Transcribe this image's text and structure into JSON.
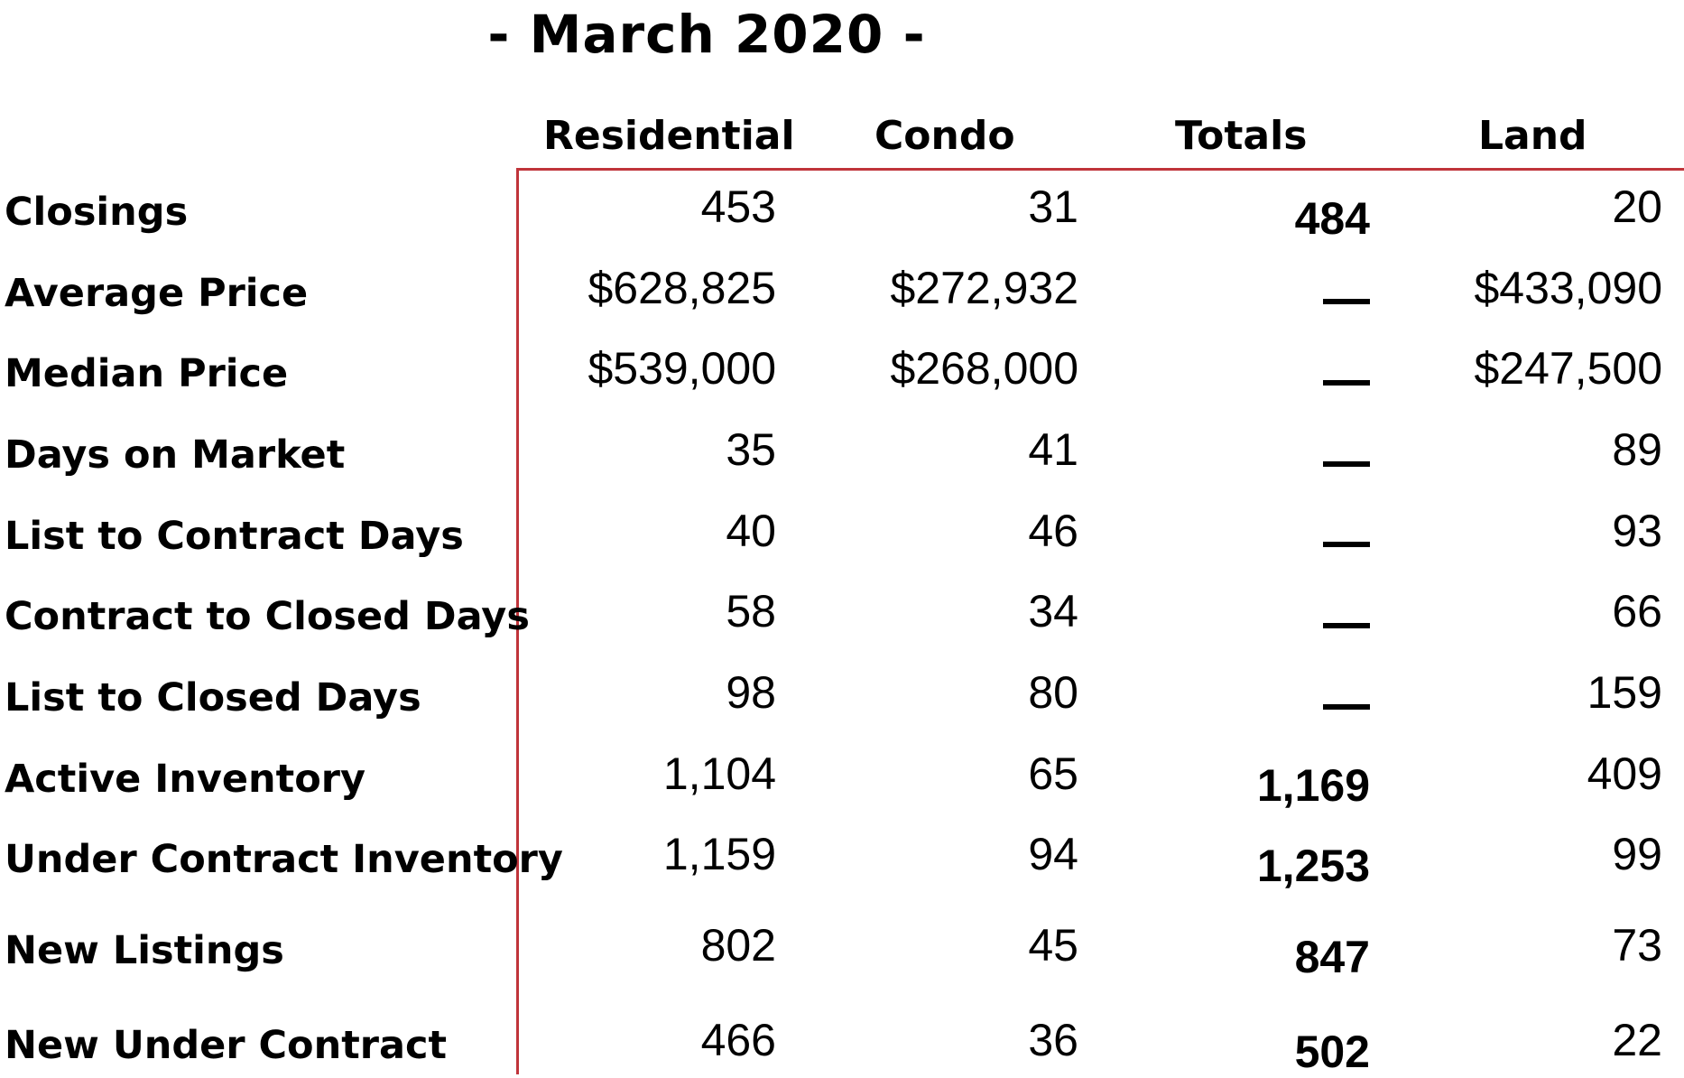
{
  "title": "- March 2020 -",
  "columns": [
    "Residential",
    "Condo",
    "Totals",
    "Land"
  ],
  "rows": [
    {
      "label": "Closings",
      "residential": "453",
      "condo": "31",
      "totals": "484",
      "land": "20"
    },
    {
      "label": "Average Price",
      "residential": "$628,825",
      "condo": "$272,932",
      "totals": "—",
      "land": "$433,090"
    },
    {
      "label": "Median Price",
      "residential": "$539,000",
      "condo": "$268,000",
      "totals": "—",
      "land": "$247,500"
    },
    {
      "label": "Days on Market",
      "residential": "35",
      "condo": "41",
      "totals": "—",
      "land": "89"
    },
    {
      "label": "List to Contract Days",
      "residential": "40",
      "condo": "46",
      "totals": "—",
      "land": "93"
    },
    {
      "label": "Contract to Closed Days",
      "residential": "58",
      "condo": "34",
      "totals": "—",
      "land": "66"
    },
    {
      "label": "List to Closed Days",
      "residential": "98",
      "condo": "80",
      "totals": "—",
      "land": "159"
    },
    {
      "label": "Active Inventory",
      "residential": "1,104",
      "condo": "65",
      "totals": "1,169",
      "land": "409"
    },
    {
      "label": "Under Contract Inventory",
      "residential": "1,159",
      "condo": "94",
      "totals": "1,253",
      "land": "99"
    },
    {
      "label": "New Listings",
      "residential": "802",
      "condo": "45",
      "totals": "847",
      "land": "73"
    },
    {
      "label": "New Under Contract",
      "residential": "466",
      "condo": "36",
      "totals": "502",
      "land": "22"
    }
  ],
  "colors": {
    "border": "#c0343a",
    "text": "#000000"
  }
}
